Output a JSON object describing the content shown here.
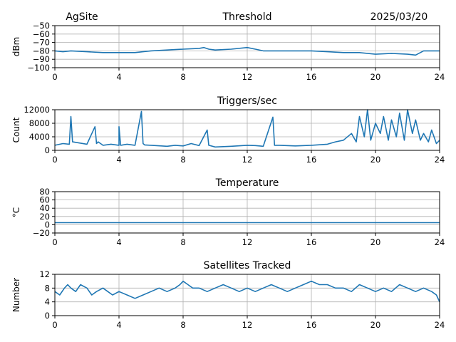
{
  "header": {
    "site": "AgSite",
    "date": "2025/03/20"
  },
  "line_color": "#1f77b4",
  "chart_data": [
    {
      "type": "line",
      "title": "Threshold",
      "ylabel": "dBm",
      "xlim": [
        0,
        24
      ],
      "ylim": [
        -100,
        -50
      ],
      "xticks": [
        0,
        4,
        8,
        12,
        16,
        20,
        24
      ],
      "yticks": [
        -50,
        -60,
        -70,
        -80,
        -90,
        -100
      ],
      "ytick_labels": [
        "−50",
        "−60",
        "−70",
        "−80",
        "−90",
        "−100"
      ],
      "grid": true,
      "series": [
        {
          "x": [
            0,
            0.5,
            1,
            2,
            3,
            4,
            5,
            5.5,
            6,
            7,
            8,
            9,
            9.3,
            9.6,
            10,
            11,
            12,
            12.5,
            13,
            14,
            15,
            16,
            17,
            18,
            19,
            20,
            21,
            22,
            22.5,
            23,
            24
          ],
          "y": [
            -80,
            -81,
            -80,
            -81,
            -82,
            -82,
            -82,
            -81,
            -80,
            -79,
            -78,
            -77,
            -76,
            -78,
            -79,
            -78,
            -76,
            -78,
            -80,
            -80,
            -80,
            -80,
            -81,
            -82,
            -82,
            -84,
            -83,
            -84,
            -85,
            -80,
            -80
          ]
        }
      ]
    },
    {
      "type": "line",
      "title": "Triggers/sec",
      "ylabel": "Count",
      "xlim": [
        0,
        24
      ],
      "ylim": [
        0,
        12000
      ],
      "xticks": [
        0,
        4,
        8,
        12,
        16,
        20,
        24
      ],
      "yticks": [
        0,
        4000,
        8000,
        12000
      ],
      "ytick_labels": [
        "0",
        "4000",
        "8000",
        "12000"
      ],
      "grid": true,
      "series": [
        {
          "x": [
            0,
            0.5,
            0.9,
            1,
            1.1,
            1.5,
            2,
            2.5,
            2.6,
            2.7,
            3,
            3.5,
            4,
            4,
            4.1,
            4.5,
            5,
            5.4,
            5.5,
            5.6,
            6,
            7,
            7.5,
            8,
            8.5,
            9,
            9.5,
            9.6,
            10,
            11,
            12,
            12.5,
            13,
            13.6,
            13.7,
            14,
            15,
            16,
            17,
            17.5,
            18,
            18.5,
            18.8,
            19,
            19.3,
            19.5,
            19.7,
            20,
            20.3,
            20.5,
            20.8,
            21,
            21.3,
            21.5,
            21.8,
            22,
            22.3,
            22.5,
            22.8,
            23,
            23.3,
            23.5,
            23.8,
            24
          ],
          "y": [
            1500,
            2000,
            1800,
            10000,
            2500,
            2200,
            1800,
            7000,
            2000,
            2500,
            1500,
            1800,
            1500,
            7000,
            1500,
            1800,
            1500,
            11500,
            2000,
            1600,
            1500,
            1200,
            1500,
            1300,
            2000,
            1400,
            6000,
            1500,
            1000,
            1200,
            1500,
            1400,
            1200,
            9800,
            1500,
            1500,
            1300,
            1500,
            1800,
            2500,
            3000,
            5000,
            2500,
            10000,
            4000,
            12000,
            3000,
            8000,
            5000,
            10000,
            3000,
            9000,
            4000,
            11000,
            3000,
            12000,
            5000,
            9000,
            3000,
            5000,
            2500,
            6000,
            2000,
            3000
          ]
        }
      ]
    },
    {
      "type": "line",
      "title": "Temperature",
      "ylabel": "°C",
      "xlim": [
        0,
        24
      ],
      "ylim": [
        -20,
        80
      ],
      "xticks": [
        0,
        4,
        8,
        12,
        16,
        20,
        24
      ],
      "yticks": [
        -20,
        0,
        20,
        40,
        60,
        80
      ],
      "ytick_labels": [
        "−20",
        "0",
        "20",
        "40",
        "60",
        "80"
      ],
      "grid": true,
      "series": [
        {
          "x": [
            0,
            24
          ],
          "y": [
            5,
            5
          ]
        }
      ]
    },
    {
      "type": "line",
      "title": "Satellites Tracked",
      "ylabel": "Number",
      "xlim": [
        0,
        24
      ],
      "ylim": [
        0,
        12
      ],
      "xticks": [
        0,
        4,
        8,
        12,
        16,
        20,
        24
      ],
      "yticks": [
        0,
        4,
        8,
        12
      ],
      "ytick_labels": [
        "0",
        "4",
        "8",
        "12"
      ],
      "grid": true,
      "series": [
        {
          "x": [
            0,
            0.3,
            0.6,
            0.8,
            1,
            1.3,
            1.6,
            2,
            2.3,
            2.6,
            3,
            3.3,
            3.6,
            4,
            4.5,
            5,
            5.5,
            6,
            6.5,
            7,
            7.5,
            7.8,
            8,
            8.3,
            8.6,
            9,
            9.5,
            10,
            10.5,
            11,
            11.5,
            12,
            12.5,
            13,
            13.5,
            14,
            14.5,
            15,
            15.5,
            16,
            16.5,
            17,
            17.5,
            18,
            18.5,
            19,
            19.5,
            20,
            20.5,
            21,
            21.5,
            22,
            22.5,
            23,
            23.5,
            23.8,
            24
          ],
          "y": [
            7,
            6,
            8,
            9,
            8,
            7,
            9,
            8,
            6,
            7,
            8,
            7,
            6,
            7,
            6,
            5,
            6,
            7,
            8,
            7,
            8,
            9,
            10,
            9,
            8,
            8,
            7,
            8,
            9,
            8,
            7,
            8,
            7,
            8,
            9,
            8,
            7,
            8,
            9,
            10,
            9,
            9,
            8,
            8,
            7,
            9,
            8,
            7,
            8,
            7,
            9,
            8,
            7,
            8,
            7,
            6,
            4
          ]
        }
      ]
    }
  ]
}
